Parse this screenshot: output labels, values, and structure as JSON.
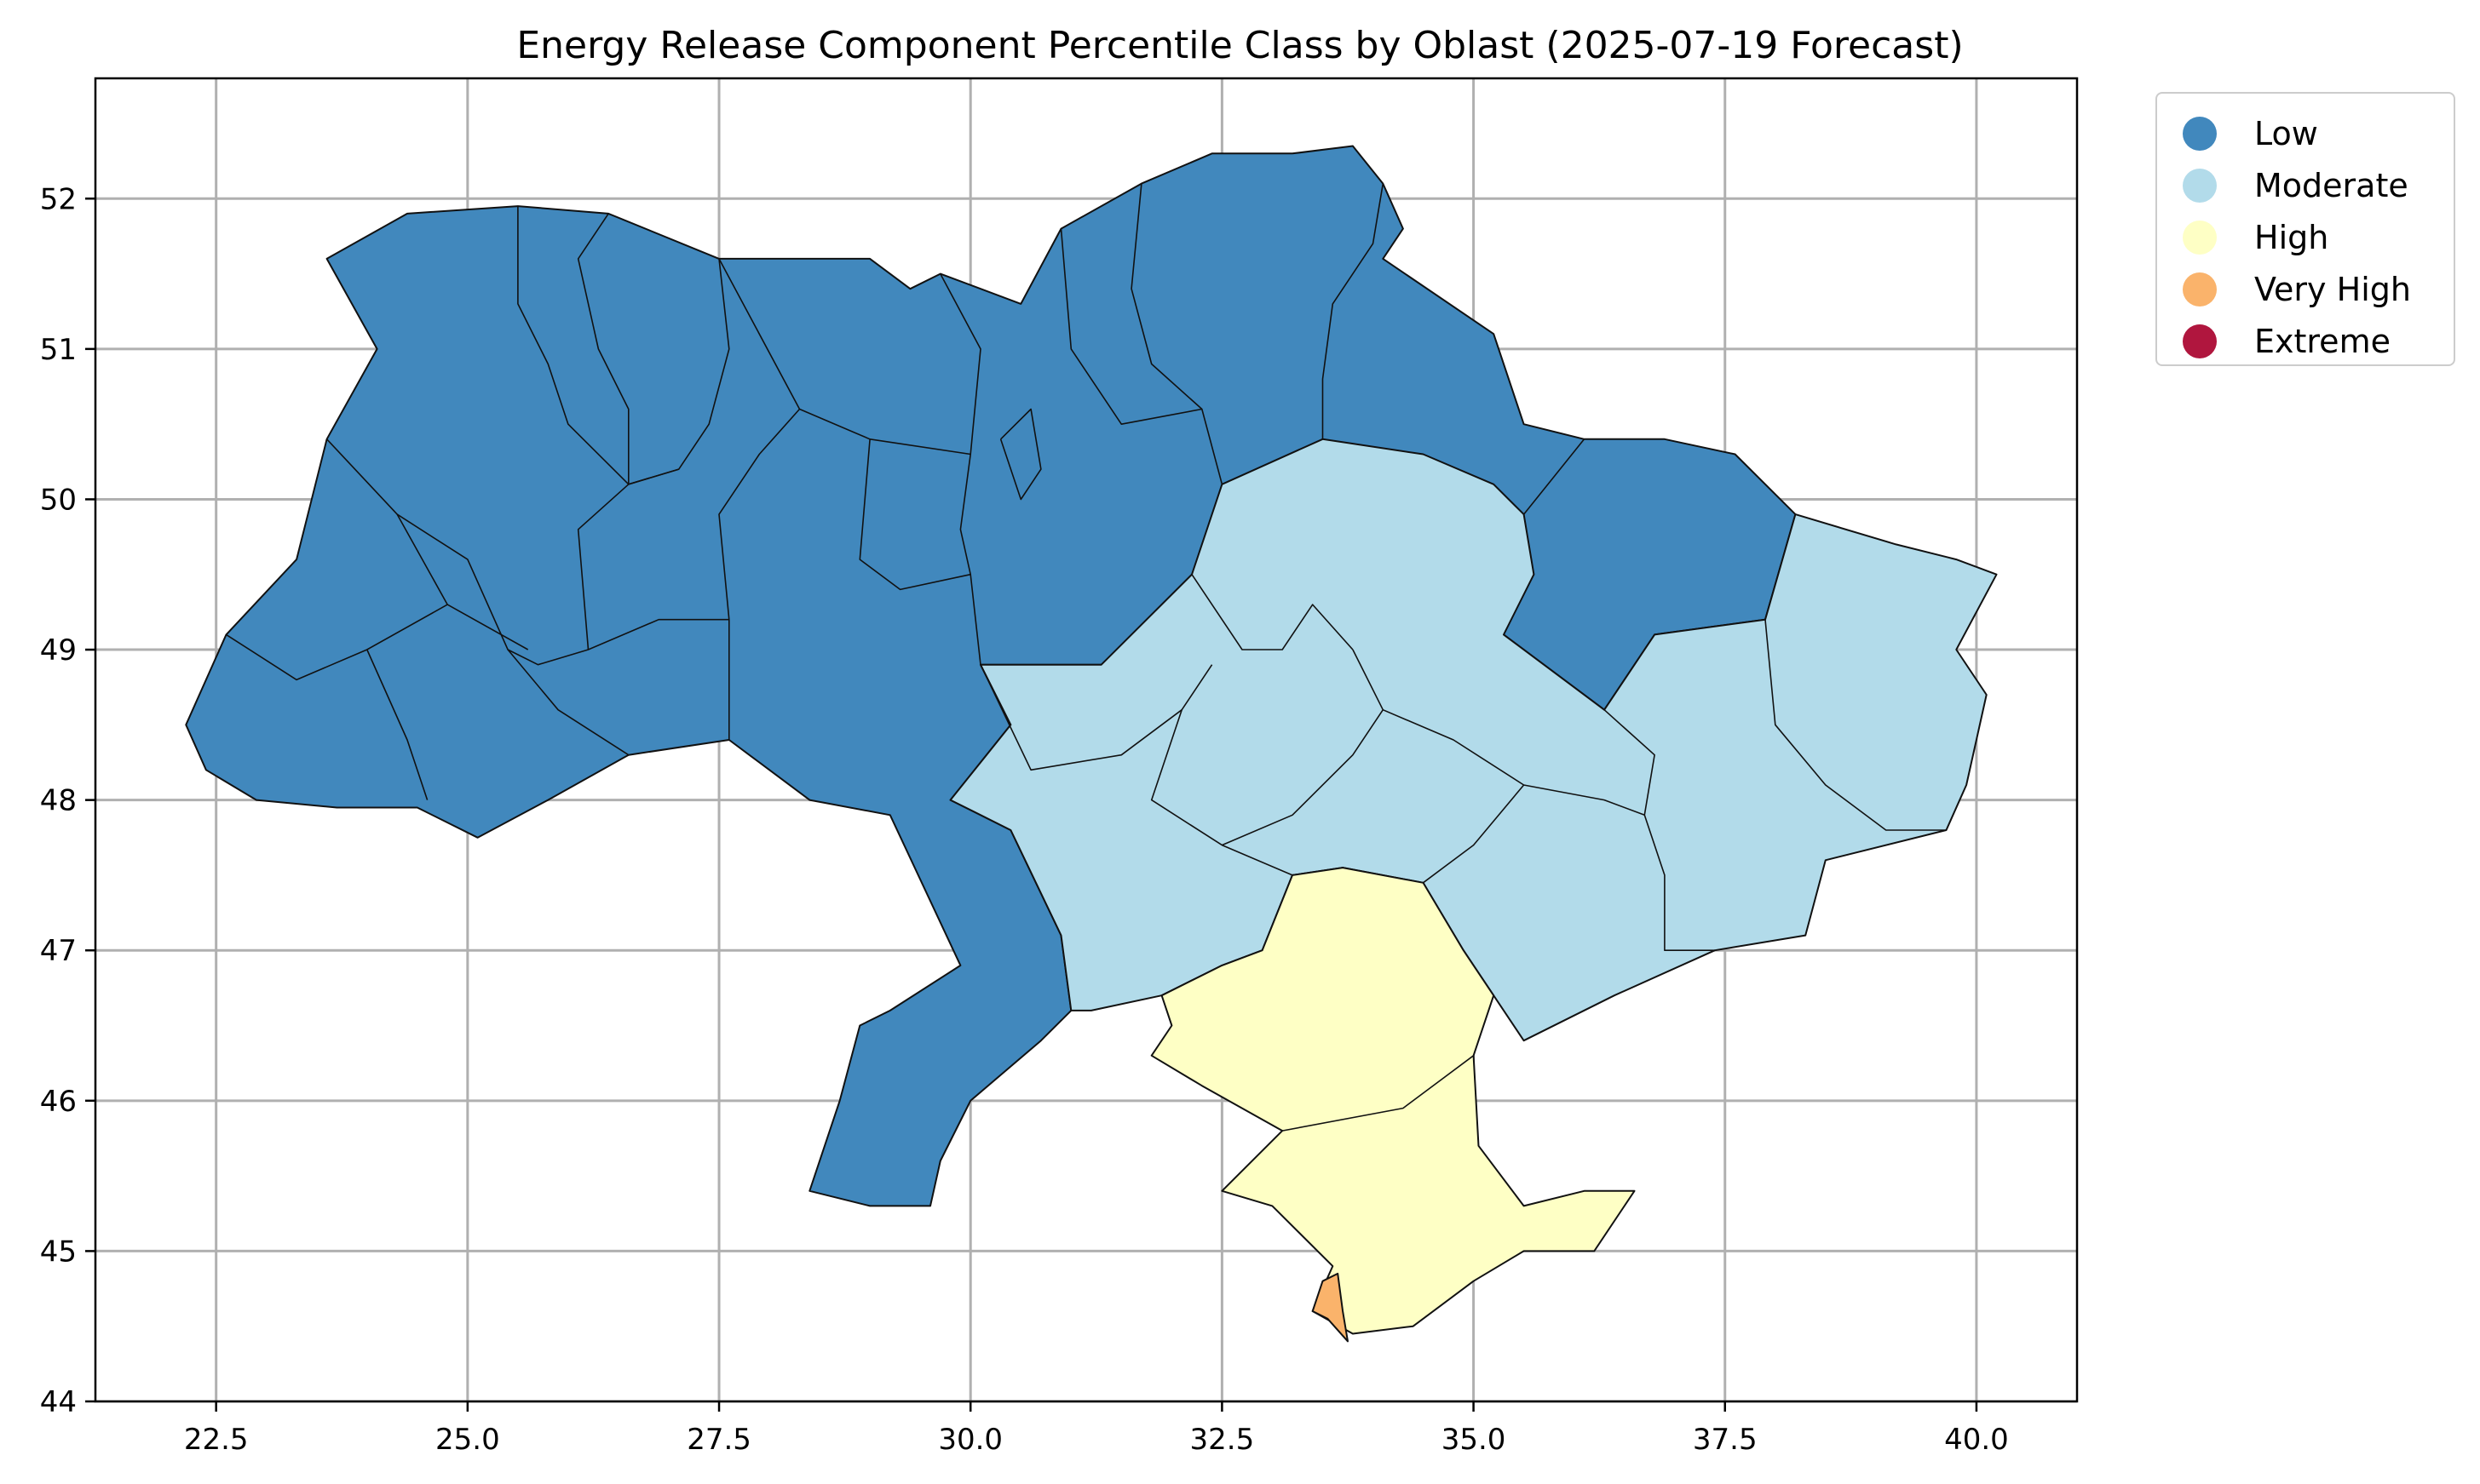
{
  "title": "Energy Release Component Percentile Class by Oblast (2025-07-19 Forecast)",
  "colors": {
    "Low": "#4188bd",
    "Moderate": "#b2dbea",
    "High": "#feffc5",
    "Very High": "#fab36b",
    "Extreme": "#b0163e"
  },
  "legend": {
    "items": [
      {
        "label": "Low",
        "color": "#4188bd"
      },
      {
        "label": "Moderate",
        "color": "#b2dbea"
      },
      {
        "label": "High",
        "color": "#feffc5"
      },
      {
        "label": "Very High",
        "color": "#fab36b"
      },
      {
        "label": "Extreme",
        "color": "#b0163e"
      }
    ]
  },
  "chart_data": {
    "type": "choropleth",
    "xlim": [
      21.3,
      41.0
    ],
    "ylim": [
      44.0,
      52.8
    ],
    "xticks": [
      "22.5",
      "25.0",
      "27.5",
      "30.0",
      "32.5",
      "35.0",
      "37.5",
      "40.0"
    ],
    "xtick_values": [
      22.5,
      25.0,
      27.5,
      30.0,
      32.5,
      35.0,
      37.5,
      40.0
    ],
    "yticks": [
      "44",
      "45",
      "46",
      "47",
      "48",
      "49",
      "50",
      "51",
      "52"
    ],
    "ytick_values": [
      44,
      45,
      46,
      47,
      48,
      49,
      50,
      51,
      52
    ],
    "grid": true,
    "legend_position": "outside top-right",
    "classes": [
      "Low",
      "Moderate",
      "High",
      "Very High",
      "Extreme"
    ],
    "regions": [
      {
        "class": "Low",
        "lonlat": [
          [
            22.2,
            48.5
          ],
          [
            22.6,
            49.1
          ],
          [
            23.3,
            49.6
          ],
          [
            23.6,
            50.4
          ],
          [
            24.1,
            51.0
          ],
          [
            23.6,
            51.6
          ],
          [
            24.4,
            51.9
          ],
          [
            25.5,
            51.95
          ],
          [
            26.4,
            51.9
          ],
          [
            27.5,
            51.6
          ],
          [
            28.3,
            51.6
          ],
          [
            29.0,
            51.6
          ],
          [
            29.4,
            51.4
          ],
          [
            29.7,
            51.5
          ],
          [
            30.5,
            51.3
          ],
          [
            30.9,
            51.8
          ],
          [
            31.7,
            52.1
          ],
          [
            32.4,
            52.3
          ],
          [
            33.2,
            52.3
          ],
          [
            33.8,
            52.35
          ],
          [
            34.1,
            52.1
          ],
          [
            34.3,
            51.8
          ],
          [
            34.1,
            51.6
          ],
          [
            35.2,
            51.1
          ],
          [
            35.5,
            50.5
          ],
          [
            36.1,
            50.4
          ],
          [
            36.9,
            50.4
          ],
          [
            37.6,
            50.3
          ],
          [
            38.2,
            49.9
          ],
          [
            37.9,
            49.2
          ],
          [
            36.8,
            49.1
          ],
          [
            36.3,
            48.6
          ],
          [
            35.3,
            49.1
          ],
          [
            34.3,
            49.2
          ],
          [
            33.8,
            49.0
          ],
          [
            33.1,
            49.0
          ],
          [
            32.4,
            48.9
          ],
          [
            31.3,
            48.9
          ],
          [
            30.1,
            48.9
          ],
          [
            30.4,
            48.5
          ],
          [
            29.8,
            48.0
          ],
          [
            30.4,
            47.8
          ],
          [
            30.9,
            47.1
          ],
          [
            31.0,
            46.6
          ],
          [
            30.7,
            46.4
          ],
          [
            30.0,
            46.0
          ],
          [
            29.7,
            45.6
          ],
          [
            29.6,
            45.3
          ],
          [
            29.0,
            45.3
          ],
          [
            28.4,
            45.4
          ],
          [
            28.7,
            46.0
          ],
          [
            28.9,
            46.5
          ],
          [
            29.2,
            46.6
          ],
          [
            29.9,
            46.9
          ],
          [
            29.2,
            47.9
          ],
          [
            28.4,
            48.0
          ],
          [
            27.6,
            48.4
          ],
          [
            26.6,
            48.3
          ],
          [
            25.8,
            48.0
          ],
          [
            25.1,
            47.75
          ],
          [
            24.5,
            47.95
          ],
          [
            23.7,
            47.95
          ],
          [
            22.9,
            48.0
          ],
          [
            22.4,
            48.2
          ]
        ]
      },
      {
        "class": "Moderate",
        "lonlat": [
          [
            30.1,
            48.9
          ],
          [
            31.3,
            48.9
          ],
          [
            32.2,
            49.5
          ],
          [
            32.5,
            50.1
          ],
          [
            33.5,
            50.4
          ],
          [
            34.5,
            50.3
          ],
          [
            35.2,
            50.1
          ],
          [
            35.5,
            49.9
          ],
          [
            35.6,
            49.5
          ],
          [
            35.3,
            49.1
          ],
          [
            36.3,
            48.6
          ],
          [
            36.8,
            49.1
          ],
          [
            37.9,
            49.2
          ],
          [
            38.2,
            49.9
          ],
          [
            39.2,
            49.7
          ],
          [
            39.8,
            49.6
          ],
          [
            40.2,
            49.5
          ],
          [
            39.8,
            49.0
          ],
          [
            40.1,
            48.7
          ],
          [
            39.9,
            48.1
          ],
          [
            39.7,
            47.8
          ],
          [
            38.5,
            47.6
          ],
          [
            38.3,
            47.1
          ],
          [
            37.4,
            47.0
          ],
          [
            36.4,
            46.7
          ],
          [
            35.5,
            46.4
          ],
          [
            35.2,
            46.7
          ],
          [
            34.9,
            47.0
          ],
          [
            34.5,
            47.45
          ],
          [
            33.7,
            47.55
          ],
          [
            33.2,
            47.5
          ],
          [
            32.9,
            47.0
          ],
          [
            32.5,
            46.9
          ],
          [
            31.9,
            46.7
          ],
          [
            31.2,
            46.6
          ],
          [
            31.0,
            46.6
          ],
          [
            30.9,
            47.1
          ],
          [
            30.4,
            47.8
          ],
          [
            29.8,
            48.0
          ],
          [
            30.4,
            48.5
          ]
        ]
      },
      {
        "class": "High",
        "lonlat": [
          [
            33.2,
            47.5
          ],
          [
            33.7,
            47.55
          ],
          [
            34.5,
            47.45
          ],
          [
            34.9,
            47.0
          ],
          [
            35.2,
            46.7
          ],
          [
            35.0,
            46.3
          ],
          [
            35.05,
            45.7
          ],
          [
            35.5,
            45.3
          ],
          [
            36.1,
            45.4
          ],
          [
            36.6,
            45.4
          ],
          [
            36.2,
            45.0
          ],
          [
            35.5,
            45.0
          ],
          [
            35.0,
            44.8
          ],
          [
            34.4,
            44.5
          ],
          [
            33.8,
            44.45
          ],
          [
            33.4,
            44.6
          ],
          [
            33.6,
            44.9
          ],
          [
            33.0,
            45.3
          ],
          [
            32.5,
            45.4
          ],
          [
            33.1,
            45.8
          ],
          [
            32.3,
            46.1
          ],
          [
            31.8,
            46.3
          ],
          [
            32.0,
            46.5
          ],
          [
            31.9,
            46.7
          ],
          [
            32.5,
            46.9
          ],
          [
            32.9,
            47.0
          ]
        ]
      },
      {
        "class": "Very High",
        "lonlat": [
          [
            33.4,
            44.6
          ],
          [
            33.55,
            44.55
          ],
          [
            33.75,
            44.4
          ],
          [
            33.7,
            44.6
          ],
          [
            33.65,
            44.85
          ],
          [
            33.5,
            44.8
          ]
        ]
      }
    ],
    "borders": [
      [
        [
          25.5,
          51.95
        ],
        [
          25.5,
          51.3
        ],
        [
          25.8,
          50.9
        ],
        [
          26.0,
          50.5
        ],
        [
          26.6,
          50.1
        ],
        [
          27.1,
          50.2
        ]
      ],
      [
        [
          23.6,
          50.4
        ],
        [
          24.3,
          49.9
        ],
        [
          25.0,
          49.6
        ],
        [
          25.4,
          49.0
        ],
        [
          25.9,
          48.6
        ],
        [
          26.6,
          48.3
        ]
      ],
      [
        [
          26.4,
          51.9
        ],
        [
          26.1,
          51.6
        ],
        [
          26.3,
          51.0
        ],
        [
          26.6,
          50.6
        ],
        [
          26.6,
          50.1
        ]
      ],
      [
        [
          27.5,
          51.6
        ],
        [
          27.6,
          51.0
        ],
        [
          27.4,
          50.5
        ],
        [
          27.1,
          50.2
        ],
        [
          26.6,
          50.1
        ]
      ],
      [
        [
          27.5,
          51.6
        ],
        [
          28.3,
          50.6
        ],
        [
          27.9,
          50.3
        ],
        [
          27.5,
          49.9
        ],
        [
          27.6,
          49.2
        ],
        [
          27.6,
          48.4
        ]
      ],
      [
        [
          27.6,
          49.2
        ],
        [
          26.9,
          49.2
        ],
        [
          26.2,
          49.0
        ],
        [
          25.7,
          48.9
        ],
        [
          25.4,
          49.0
        ]
      ],
      [
        [
          26.2,
          49.0
        ],
        [
          26.1,
          49.8
        ],
        [
          26.6,
          50.1
        ]
      ],
      [
        [
          24.3,
          49.9
        ],
        [
          24.8,
          49.3
        ],
        [
          24.0,
          49.0
        ],
        [
          23.3,
          48.8
        ],
        [
          22.6,
          49.1
        ]
      ],
      [
        [
          24.0,
          49.0
        ],
        [
          24.4,
          48.4
        ],
        [
          24.6,
          48.0
        ]
      ],
      [
        [
          24.8,
          49.3
        ],
        [
          25.6,
          49.0
        ]
      ],
      [
        [
          28.3,
          50.6
        ],
        [
          29.0,
          50.4
        ],
        [
          28.9,
          49.6
        ],
        [
          29.3,
          49.4
        ],
        [
          30.0,
          49.5
        ],
        [
          30.1,
          48.9
        ]
      ],
      [
        [
          29.7,
          51.5
        ],
        [
          30.1,
          51.0
        ],
        [
          30.0,
          50.3
        ],
        [
          29.9,
          49.8
        ],
        [
          30.0,
          49.5
        ]
      ],
      [
        [
          29.0,
          50.4
        ],
        [
          30.0,
          50.3
        ]
      ],
      [
        [
          31.7,
          52.1
        ],
        [
          31.6,
          51.4
        ],
        [
          31.8,
          50.9
        ],
        [
          32.3,
          50.6
        ],
        [
          32.5,
          50.1
        ]
      ],
      [
        [
          30.9,
          51.8
        ],
        [
          31.0,
          51.0
        ],
        [
          31.5,
          50.5
        ],
        [
          32.3,
          50.6
        ]
      ],
      [
        [
          30.3,
          50.4
        ],
        [
          30.5,
          50.0
        ],
        [
          30.7,
          50.2
        ],
        [
          30.6,
          50.6
        ],
        [
          30.3,
          50.4
        ]
      ],
      [
        [
          34.1,
          52.1
        ],
        [
          34.0,
          51.7
        ],
        [
          33.6,
          51.3
        ],
        [
          33.5,
          50.8
        ],
        [
          33.5,
          50.4
        ]
      ],
      [
        [
          35.5,
          49.9
        ],
        [
          36.1,
          50.4
        ]
      ],
      [
        [
          32.2,
          49.5
        ],
        [
          32.7,
          49.0
        ],
        [
          33.1,
          49.0
        ],
        [
          33.4,
          49.3
        ],
        [
          33.8,
          49.0
        ]
      ],
      [
        [
          30.1,
          48.9
        ],
        [
          30.6,
          48.2
        ],
        [
          31.5,
          48.3
        ],
        [
          32.1,
          48.6
        ],
        [
          32.4,
          48.9
        ]
      ],
      [
        [
          32.1,
          48.6
        ],
        [
          31.8,
          48.0
        ],
        [
          32.5,
          47.7
        ],
        [
          33.2,
          47.5
        ]
      ],
      [
        [
          33.8,
          49.0
        ],
        [
          34.1,
          48.6
        ],
        [
          33.8,
          48.3
        ],
        [
          33.2,
          47.9
        ],
        [
          32.5,
          47.7
        ]
      ],
      [
        [
          34.1,
          48.6
        ],
        [
          34.8,
          48.4
        ],
        [
          35.5,
          48.1
        ],
        [
          36.3,
          48.0
        ],
        [
          36.7,
          47.9
        ],
        [
          36.9,
          47.5
        ],
        [
          36.9,
          47.0
        ],
        [
          37.4,
          47.0
        ]
      ],
      [
        [
          34.5,
          47.45
        ],
        [
          35.0,
          47.7
        ],
        [
          35.5,
          48.1
        ]
      ],
      [
        [
          36.3,
          48.6
        ],
        [
          36.8,
          48.3
        ],
        [
          36.7,
          47.9
        ]
      ],
      [
        [
          37.9,
          49.2
        ],
        [
          38.0,
          48.5
        ],
        [
          38.5,
          48.1
        ],
        [
          39.1,
          47.8
        ],
        [
          39.7,
          47.8
        ]
      ],
      [
        [
          33.1,
          45.8
        ],
        [
          34.3,
          45.95
        ],
        [
          35.0,
          46.3
        ]
      ]
    ]
  }
}
